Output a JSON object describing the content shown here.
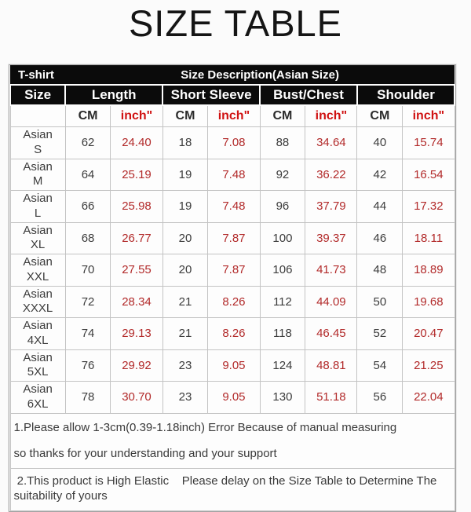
{
  "title": "SIZE TABLE",
  "colors": {
    "header_bg": "#0b0b0b",
    "header_text": "#ffffff",
    "accent_red_header": "#d01212",
    "accent_red_values": "#b22a2a",
    "body_text": "#3c3c3c"
  },
  "table": {
    "product_label": "T-shirt",
    "description": "Size Description(Asian Size)",
    "groups": [
      "Size",
      "Length",
      "Short Sleeve",
      "Bust/Chest",
      "Shoulder"
    ],
    "unit_row": [
      "",
      "CM",
      "inch\"",
      "CM",
      "inch\"",
      "CM",
      "inch\"",
      "CM",
      "inch\""
    ],
    "rows": [
      {
        "size": "Asian\nS",
        "cells": [
          "62",
          "24.40",
          "18",
          "7.08",
          "88",
          "34.64",
          "40",
          "15.74"
        ]
      },
      {
        "size": "Asian\nM",
        "cells": [
          "64",
          "25.19",
          "19",
          "7.48",
          "92",
          "36.22",
          "42",
          "16.54"
        ]
      },
      {
        "size": "Asian\nL",
        "cells": [
          "66",
          "25.98",
          "19",
          "7.48",
          "96",
          "37.79",
          "44",
          "17.32"
        ]
      },
      {
        "size": "Asian\nXL",
        "cells": [
          "68",
          "26.77",
          "20",
          "7.87",
          "100",
          "39.37",
          "46",
          "18.11"
        ]
      },
      {
        "size": "Asian\nXXL",
        "cells": [
          "70",
          "27.55",
          "20",
          "7.87",
          "106",
          "41.73",
          "48",
          "18.89"
        ]
      },
      {
        "size": "Asian\nXXXL",
        "cells": [
          "72",
          "28.34",
          "21",
          "8.26",
          "112",
          "44.09",
          "50",
          "19.68"
        ]
      },
      {
        "size": "Asian\n4XL",
        "cells": [
          "74",
          "29.13",
          "21",
          "8.26",
          "118",
          "46.45",
          "52",
          "20.47"
        ]
      },
      {
        "size": "Asian\n5XL",
        "cells": [
          "76",
          "29.92",
          "23",
          "9.05",
          "124",
          "48.81",
          "54",
          "21.25"
        ]
      },
      {
        "size": "Asian\n6XL",
        "cells": [
          "78",
          "30.70",
          "23",
          "9.05",
          "130",
          "51.18",
          "56",
          "22.04"
        ]
      }
    ],
    "notes": [
      "1.Please allow 1-3cm(0.39-1.18inch) Error Because of manual measuring",
      "so thanks for your understanding and your support",
      " 2.This product is High Elastic    Please delay on the Size Table to Determine The suitability of yours"
    ]
  }
}
